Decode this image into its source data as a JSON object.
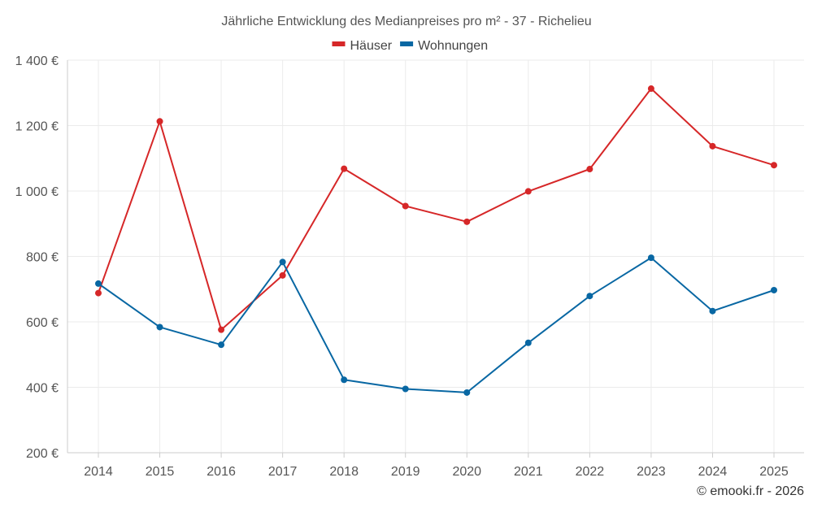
{
  "chart_data": {
    "type": "line",
    "title": "Jährliche Entwicklung des Medianpreises pro m² - 37 - Richelieu",
    "categories": [
      "2014",
      "2015",
      "2016",
      "2017",
      "2018",
      "2019",
      "2020",
      "2021",
      "2022",
      "2023",
      "2024",
      "2025"
    ],
    "series": [
      {
        "name": "Häuser",
        "color": "#d62728",
        "values": [
          688,
          1213,
          576,
          742,
          1068,
          954,
          906,
          999,
          1067,
          1313,
          1137,
          1079
        ]
      },
      {
        "name": "Wohnungen",
        "color": "#0867a3",
        "values": [
          717,
          584,
          530,
          783,
          423,
          395,
          384,
          536,
          679,
          796,
          633,
          697
        ]
      }
    ],
    "ylim": [
      200,
      1400
    ],
    "yticks": [
      200,
      400,
      600,
      800,
      1000,
      1200,
      1400
    ],
    "ytick_labels": [
      "200 €",
      "400 €",
      "600 €",
      "800 €",
      "1 000 €",
      "1 200 €",
      "1 400 €"
    ],
    "xlabel": "",
    "ylabel": "",
    "grid": true,
    "legend_position": "top-center"
  },
  "credit": "© emooki.fr - 2026"
}
